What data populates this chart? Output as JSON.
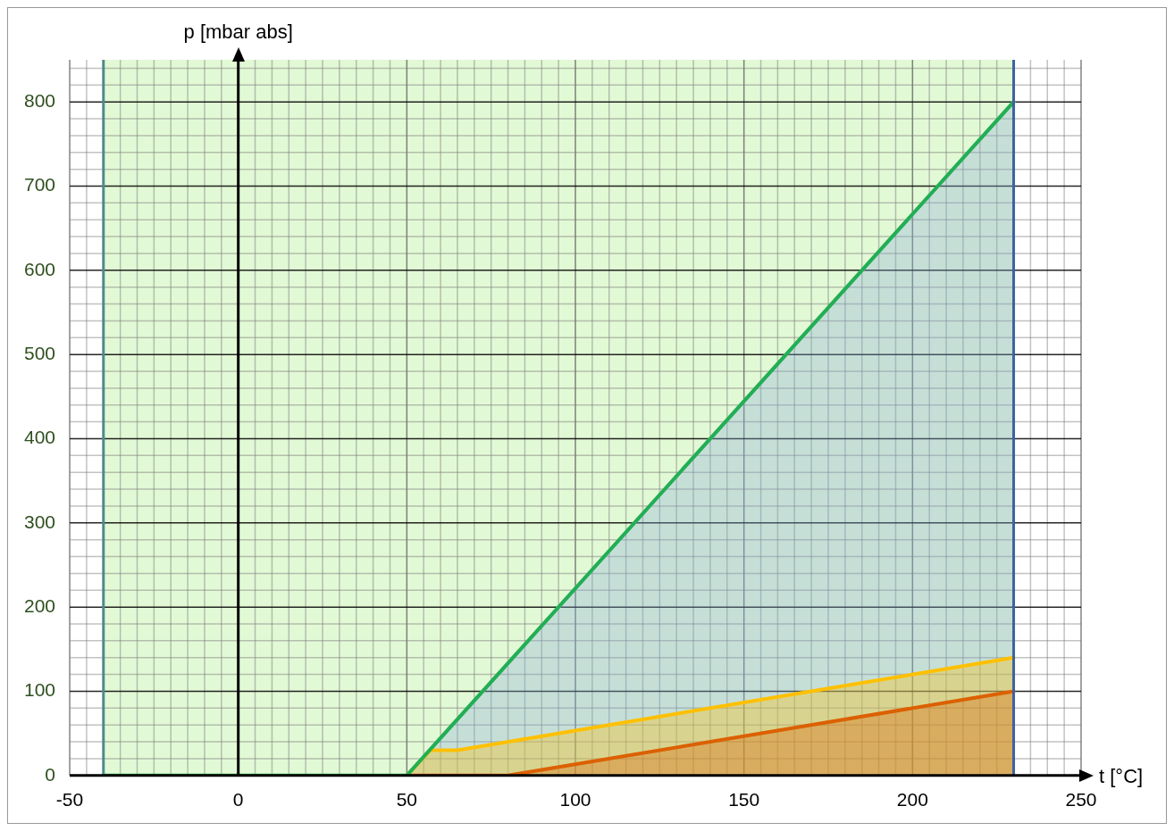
{
  "chart_data": {
    "type": "line",
    "xlabel": "t [°C]",
    "ylabel": "p [mbar abs]",
    "xlim": [
      -50,
      250
    ],
    "xticks": [
      -50,
      0,
      50,
      100,
      150,
      200,
      250
    ],
    "ylim": [
      0,
      850
    ],
    "yticks": [
      0,
      100,
      200,
      300,
      400,
      500,
      600,
      700,
      800
    ],
    "grid": true,
    "legend": false,
    "marker": "none",
    "line_style": "solid",
    "bands": [
      {
        "axis": "x",
        "from": -40,
        "to": 230,
        "color": "#e2f9d5"
      }
    ],
    "ref_lines": [
      {
        "axis": "x",
        "value": -40,
        "color": "#4e8a8c"
      },
      {
        "axis": "x",
        "value": 230,
        "color": "#3c62a0"
      }
    ],
    "series": [
      {
        "type": "line",
        "color": "#20b050",
        "x": [
          -40,
          50,
          230
        ],
        "values": [
          0,
          0,
          800
        ]
      },
      {
        "type": "area",
        "color": "#dc6000",
        "x": [
          50,
          80,
          230
        ],
        "values": [
          0,
          0,
          100
        ]
      },
      {
        "type": "area",
        "color": "#ffc000",
        "x": [
          50,
          57,
          65,
          230
        ],
        "values": [
          0,
          30,
          30,
          140
        ]
      },
      {
        "type": "area",
        "color": "#8eaadb",
        "x": [
          50,
          230
        ],
        "values": [
          0,
          800
        ]
      }
    ]
  }
}
